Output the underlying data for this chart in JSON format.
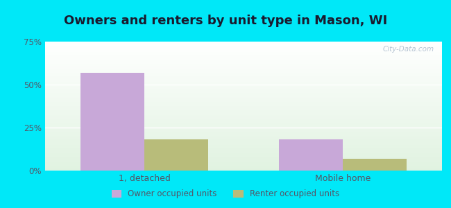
{
  "title": "Owners and renters by unit type in Mason, WI",
  "categories": [
    "1, detached",
    "Mobile home"
  ],
  "owner_values": [
    57.0,
    18.0
  ],
  "renter_values": [
    18.0,
    7.0
  ],
  "owner_color": "#c8a8d8",
  "renter_color": "#b8bc7a",
  "ylim": [
    0,
    75
  ],
  "yticks": [
    0,
    25,
    50,
    75
  ],
  "ytick_labels": [
    "0%",
    "25%",
    "50%",
    "75%"
  ],
  "bar_width": 0.32,
  "watermark": "City-Data.com",
  "legend_labels": [
    "Owner occupied units",
    "Renter occupied units"
  ],
  "title_fontsize": 13,
  "outer_bg": "#00e8f8",
  "tick_color": "#555566",
  "grid_color": "#e0e8e0"
}
